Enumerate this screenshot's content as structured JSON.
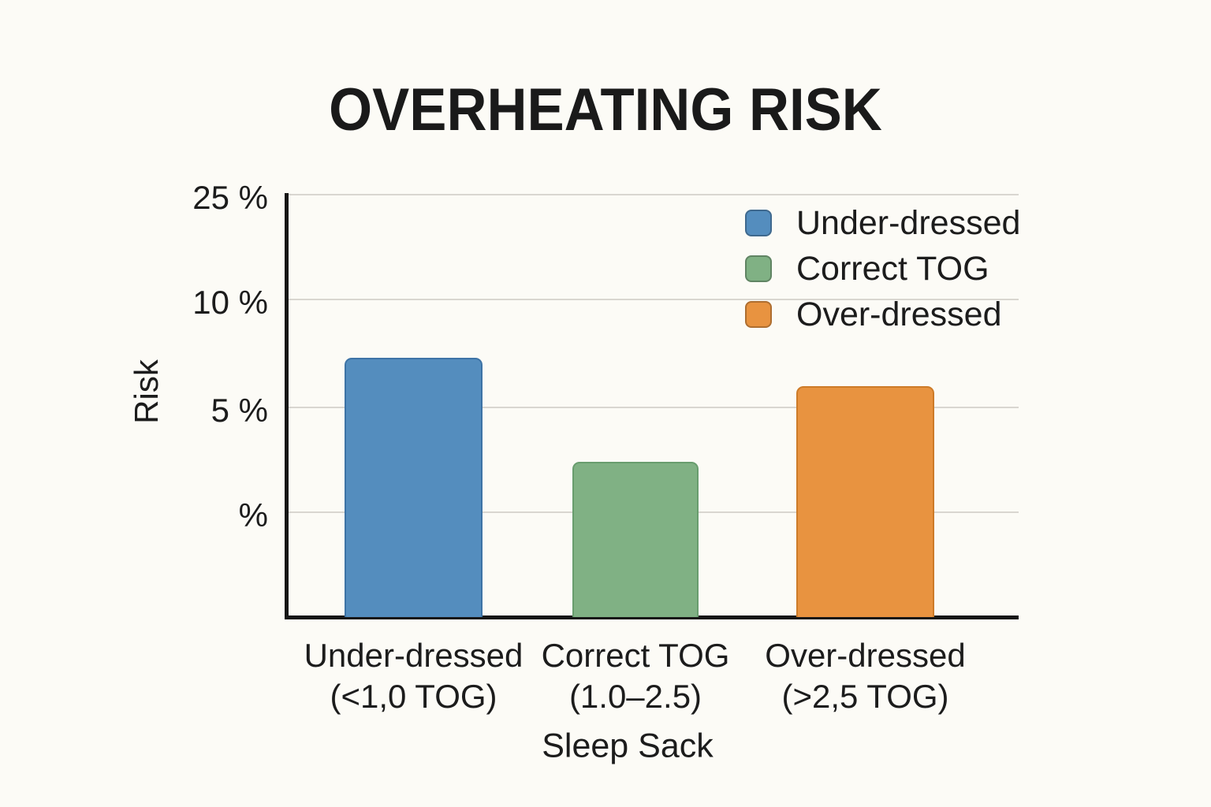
{
  "chart_data": {
    "type": "bar",
    "title": "OVERHEATING RISK",
    "xlabel": "Sleep Sack",
    "ylabel": "Risk",
    "categories": [
      {
        "label": "Under-dressed",
        "sub": "(<1,0 TOG)"
      },
      {
        "label": "Correct TOG",
        "sub": "(1.0–2.5)"
      },
      {
        "label": "Over-dressed",
        "sub": "(>2,5 TOG)"
      }
    ],
    "series": [
      {
        "name": "Under-dressed",
        "value": 7.3,
        "color": "#548dbe",
        "border_color": "#3d73a6"
      },
      {
        "name": "Correct TOG",
        "value": 2.4,
        "color": "#80b184",
        "border_color": "#689d6e"
      },
      {
        "name": "Over-dressed",
        "value": 6.0,
        "color": "#e89340",
        "border_color": "#cd7b28"
      }
    ],
    "y_ticks": [
      {
        "label": "25 %",
        "value": 25
      },
      {
        "label": "10 %",
        "value": 10
      },
      {
        "label": "5 %",
        "value": 5
      },
      {
        "label": "%",
        "value": 0
      }
    ],
    "legend": [
      {
        "label": "Under-dressed",
        "color": "#548dbe"
      },
      {
        "label": "Correct TOG",
        "color": "#80b184"
      },
      {
        "label": "Over-dressed",
        "color": "#e89340"
      }
    ],
    "legend_position": "top-right",
    "grid": true,
    "gridline_color": "#d9d6d0",
    "axis_color": "#161616",
    "background_color": "#fcfbf6",
    "text_color": "#1c1c1c"
  }
}
